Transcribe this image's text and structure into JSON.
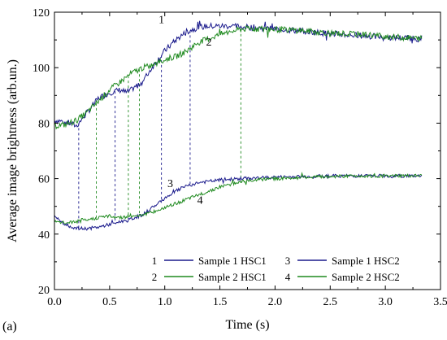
{
  "chart_data": {
    "type": "line",
    "panel_label": "(a)",
    "xlabel": "Time (s)",
    "ylabel": "Average image brightness (arb.un.)",
    "xlim": [
      0.0,
      3.5
    ],
    "ylim": [
      20,
      120
    ],
    "xticks": [
      "0.0",
      "0.5",
      "1.0",
      "1.5",
      "2.0",
      "2.5",
      "3.0",
      "3.5"
    ],
    "yticks": [
      "20",
      "40",
      "60",
      "80",
      "100",
      "120"
    ],
    "grid": false,
    "legend_position": "bottom-right",
    "colors": {
      "blue": "#1a1a8c",
      "green": "#1f8a1f"
    },
    "series": [
      {
        "number": "1",
        "name": "Sample 1 HSC1",
        "color": "#1a1a8c",
        "points": [
          [
            0,
            81
          ],
          [
            0.1,
            80.5
          ],
          [
            0.2,
            79
          ],
          [
            0.3,
            84
          ],
          [
            0.4,
            89
          ],
          [
            0.5,
            91
          ],
          [
            0.6,
            92
          ],
          [
            0.65,
            91
          ],
          [
            0.7,
            92
          ],
          [
            0.8,
            95
          ],
          [
            0.9,
            101
          ],
          [
            1.0,
            106
          ],
          [
            1.1,
            110
          ],
          [
            1.2,
            113
          ],
          [
            1.3,
            114.5
          ],
          [
            1.4,
            115
          ],
          [
            1.6,
            115
          ],
          [
            1.8,
            114.5
          ],
          [
            2.0,
            114
          ],
          [
            2.3,
            113
          ],
          [
            2.6,
            112
          ],
          [
            3.0,
            111
          ],
          [
            3.33,
            110.5
          ]
        ]
      },
      {
        "number": "2",
        "name": "Sample 2 HSC1",
        "color": "#1f8a1f",
        "points": [
          [
            0,
            79
          ],
          [
            0.1,
            79.5
          ],
          [
            0.2,
            81
          ],
          [
            0.3,
            84
          ],
          [
            0.4,
            88
          ],
          [
            0.5,
            92
          ],
          [
            0.6,
            95
          ],
          [
            0.7,
            98
          ],
          [
            0.8,
            100
          ],
          [
            0.9,
            101
          ],
          [
            1.0,
            103
          ],
          [
            1.1,
            104
          ],
          [
            1.2,
            106
          ],
          [
            1.3,
            109
          ],
          [
            1.5,
            112
          ],
          [
            1.7,
            114
          ],
          [
            1.9,
            114
          ],
          [
            2.2,
            113.5
          ],
          [
            2.5,
            112.5
          ],
          [
            2.8,
            112
          ],
          [
            3.1,
            111
          ],
          [
            3.33,
            110.5
          ]
        ]
      },
      {
        "number": "3",
        "name": "Sample 1 HSC2",
        "color": "#1a1a8c",
        "points": [
          [
            0,
            46.5
          ],
          [
            0.1,
            43.5
          ],
          [
            0.2,
            42
          ],
          [
            0.3,
            42
          ],
          [
            0.4,
            42.5
          ],
          [
            0.5,
            43.5
          ],
          [
            0.6,
            44.5
          ],
          [
            0.7,
            45.5
          ],
          [
            0.8,
            47
          ],
          [
            0.9,
            50
          ],
          [
            1.0,
            53
          ],
          [
            1.1,
            55.5
          ],
          [
            1.2,
            57.5
          ],
          [
            1.3,
            58.5
          ],
          [
            1.5,
            59.5
          ],
          [
            1.7,
            60
          ],
          [
            2.0,
            60.5
          ],
          [
            2.5,
            61
          ],
          [
            3.0,
            61
          ],
          [
            3.33,
            61
          ]
        ]
      },
      {
        "number": "4",
        "name": "Sample 2 HSC2",
        "color": "#1f8a1f",
        "points": [
          [
            0,
            44.5
          ],
          [
            0.1,
            44
          ],
          [
            0.2,
            44.5
          ],
          [
            0.3,
            45
          ],
          [
            0.4,
            46
          ],
          [
            0.5,
            46.5
          ],
          [
            0.6,
            46
          ],
          [
            0.7,
            46.5
          ],
          [
            0.8,
            47
          ],
          [
            0.9,
            48
          ],
          [
            1.0,
            49.5
          ],
          [
            1.1,
            51
          ],
          [
            1.2,
            52.5
          ],
          [
            1.3,
            54
          ],
          [
            1.4,
            55.5
          ],
          [
            1.5,
            57
          ],
          [
            1.6,
            58
          ],
          [
            1.7,
            59
          ],
          [
            1.8,
            59.5
          ],
          [
            2.0,
            60
          ],
          [
            2.3,
            60.5
          ],
          [
            2.7,
            61
          ],
          [
            3.0,
            61
          ],
          [
            3.33,
            61
          ]
        ]
      }
    ],
    "dashed_markers": {
      "blue_times": [
        0.22,
        0.55,
        0.97,
        1.23
      ],
      "green_times": [
        0.38,
        0.67,
        0.77,
        1.69
      ]
    },
    "curve_labels": [
      {
        "text": "1",
        "x": 0.97,
        "y": 116
      },
      {
        "text": "2",
        "x": 1.4,
        "y": 108
      },
      {
        "text": "3",
        "x": 1.05,
        "y": 57
      },
      {
        "text": "4",
        "x": 1.32,
        "y": 51
      }
    ]
  }
}
